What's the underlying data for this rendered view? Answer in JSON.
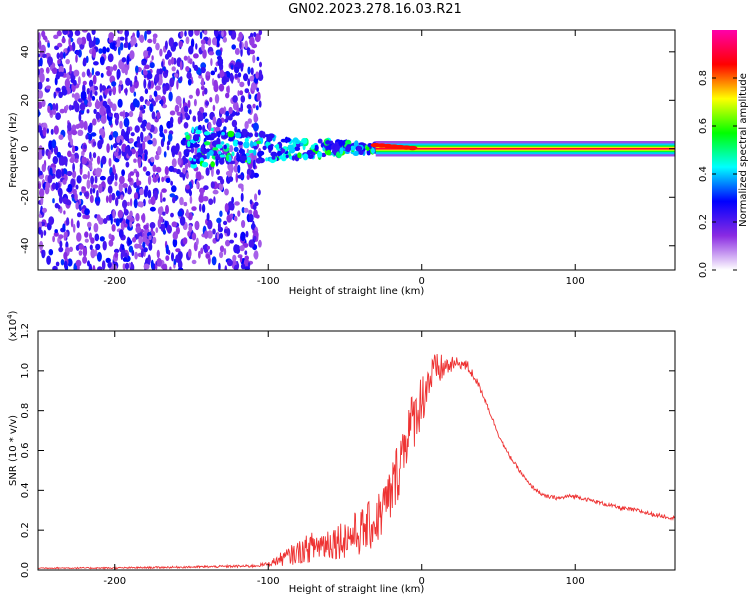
{
  "title": "GN02.2023.278.16.03.R21",
  "chart_data": [
    {
      "type": "heatmap",
      "title": "",
      "xlabel": "Height of straight line (km)",
      "ylabel": "Frequency (Hz)",
      "xlim": [
        -250,
        165
      ],
      "ylim": [
        -50,
        49
      ],
      "x_ticks": [
        -200,
        -100,
        0,
        100
      ],
      "x_tick_labels": [
        "-200",
        "-100",
        "0",
        "100"
      ],
      "y_ticks": [
        -40,
        -20,
        0,
        20,
        40
      ],
      "y_tick_labels": [
        "-40",
        "-20",
        "0",
        "20",
        "40"
      ],
      "colorbar": {
        "label": "Normalized spectral amplitude",
        "range": [
          0,
          1
        ],
        "ticks": [
          0.0,
          0.2,
          0.4,
          0.6,
          0.8
        ],
        "tick_labels": [
          "0.0",
          "0.2",
          "0.4",
          "0.6",
          "0.8"
        ],
        "colormap": [
          "#ffffff",
          "#8a2be2",
          "#0000ff",
          "#00ffff",
          "#00ff00",
          "#ffff00",
          "#ff0000",
          "#ff00aa"
        ]
      },
      "features": [
        {
          "description": "diffuse noise",
          "x_range": [
            -250,
            -105
          ],
          "y_range": [
            -50,
            49
          ],
          "amplitude": 0.15
        },
        {
          "description": "scattered echoes",
          "x_range": [
            -155,
            -30
          ],
          "y_range": [
            -15,
            18
          ],
          "amplitude": 0.3
        },
        {
          "description": "zero-Doppler signal trace",
          "x_range": [
            -30,
            165
          ],
          "y": 0,
          "amplitude": 0.9
        }
      ]
    },
    {
      "type": "line",
      "title": "",
      "xlabel": "Height of straight line (km)",
      "ylabel": "SNR (10 * v/v)",
      "y_multiplier_label": "(x10^4)",
      "xlim": [
        -250,
        165
      ],
      "ylim": [
        0,
        1.2
      ],
      "x_ticks": [
        -200,
        -100,
        0,
        100
      ],
      "x_tick_labels": [
        "-200",
        "-100",
        "0",
        "100"
      ],
      "y_ticks": [
        0.0,
        0.2,
        0.4,
        0.6,
        0.8,
        1.0,
        1.2
      ],
      "y_tick_labels": [
        "0.0",
        "0.2",
        "0.4",
        "0.6",
        "0.8",
        "1.0",
        "1.2"
      ],
      "series": [
        {
          "color": "#ee3333",
          "x": [
            -250,
            -200,
            -150,
            -110,
            -100,
            -90,
            -80,
            -70,
            -60,
            -50,
            -40,
            -30,
            -20,
            -15,
            -10,
            -5,
            0,
            5,
            10,
            15,
            20,
            25,
            30,
            35,
            40,
            45,
            50,
            55,
            60,
            70,
            80,
            90,
            95,
            100,
            110,
            120,
            130,
            140,
            150,
            165
          ],
          "values": [
            0.01,
            0.01,
            0.015,
            0.02,
            0.03,
            0.06,
            0.09,
            0.12,
            0.14,
            0.16,
            0.19,
            0.24,
            0.38,
            0.52,
            0.68,
            0.76,
            0.86,
            0.96,
            1.0,
            1.02,
            1.03,
            1.04,
            1.02,
            0.96,
            0.88,
            0.78,
            0.68,
            0.6,
            0.54,
            0.43,
            0.37,
            0.36,
            0.37,
            0.37,
            0.35,
            0.33,
            0.31,
            0.3,
            0.28,
            0.26
          ],
          "noise_amplitude": [
            0.003,
            0.004,
            0.005,
            0.007,
            0.01,
            0.04,
            0.06,
            0.08,
            0.09,
            0.1,
            0.12,
            0.13,
            0.15,
            0.16,
            0.16,
            0.15,
            0.14,
            0.12,
            0.09,
            0.06,
            0.04,
            0.03,
            0.03,
            0.02,
            0.015,
            0.012,
            0.01,
            0.01,
            0.01,
            0.01,
            0.01,
            0.01,
            0.01,
            0.01,
            0.01,
            0.01,
            0.01,
            0.01,
            0.01,
            0.01
          ]
        }
      ]
    }
  ]
}
